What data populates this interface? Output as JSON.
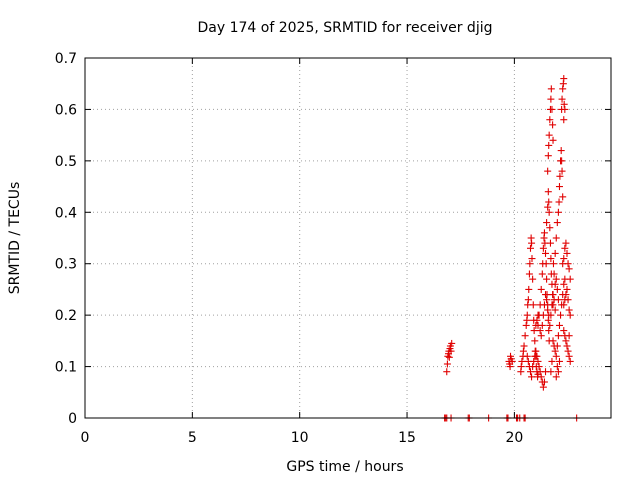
{
  "chart_data": {
    "type": "scatter",
    "title": "Day 174 of 2025, SRMTID for receiver djig",
    "xlabel": "GPS time / hours",
    "ylabel": "SRMTID / TECUs",
    "xlim": [
      0,
      24.5
    ],
    "ylim": [
      0,
      0.7
    ],
    "xticks": [
      0,
      5,
      10,
      15,
      20
    ],
    "xtick_labels": [
      "0",
      "5",
      "10",
      "15",
      "20"
    ],
    "yticks": [
      0,
      0.1,
      0.2,
      0.3,
      0.4,
      0.5,
      0.6,
      0.7
    ],
    "ytick_labels": [
      "0",
      "0.1",
      "0.2",
      "0.3",
      "0.4",
      "0.5",
      "0.6",
      "0.7"
    ],
    "grid": true,
    "marker": "+",
    "color": "#e00000",
    "series": [
      {
        "name": "SRMTID",
        "points": [
          [
            16.75,
            0.0
          ],
          [
            16.8,
            0.0
          ],
          [
            16.85,
            0.0
          ],
          [
            17.05,
            0.0
          ],
          [
            17.85,
            0.0
          ],
          [
            17.9,
            0.0
          ],
          [
            18.8,
            0.0
          ],
          [
            19.65,
            0.0
          ],
          [
            19.7,
            0.0
          ],
          [
            20.1,
            0.0
          ],
          [
            20.15,
            0.0
          ],
          [
            20.25,
            0.0
          ],
          [
            20.45,
            0.0
          ],
          [
            20.5,
            0.0
          ],
          [
            22.9,
            0.0
          ],
          [
            16.85,
            0.09
          ],
          [
            16.88,
            0.105
          ],
          [
            16.9,
            0.12
          ],
          [
            16.93,
            0.125
          ],
          [
            16.95,
            0.13
          ],
          [
            17.0,
            0.135
          ],
          [
            17.02,
            0.14
          ],
          [
            17.05,
            0.13
          ],
          [
            17.08,
            0.145
          ],
          [
            16.97,
            0.118
          ],
          [
            19.75,
            0.11
          ],
          [
            19.78,
            0.105
          ],
          [
            19.82,
            0.12
          ],
          [
            19.85,
            0.115
          ],
          [
            19.9,
            0.11
          ],
          [
            19.8,
            0.1
          ],
          [
            20.3,
            0.09
          ],
          [
            20.32,
            0.1
          ],
          [
            20.35,
            0.11
          ],
          [
            20.4,
            0.12
          ],
          [
            20.42,
            0.13
          ],
          [
            20.45,
            0.14
          ],
          [
            20.5,
            0.16
          ],
          [
            20.55,
            0.18
          ],
          [
            20.58,
            0.19
          ],
          [
            20.6,
            0.2
          ],
          [
            20.62,
            0.22
          ],
          [
            20.65,
            0.23
          ],
          [
            20.67,
            0.25
          ],
          [
            20.7,
            0.28
          ],
          [
            20.72,
            0.3
          ],
          [
            20.75,
            0.33
          ],
          [
            20.78,
            0.35
          ],
          [
            20.8,
            0.34
          ],
          [
            20.82,
            0.31
          ],
          [
            20.85,
            0.27
          ],
          [
            20.88,
            0.22
          ],
          [
            20.9,
            0.19
          ],
          [
            20.92,
            0.17
          ],
          [
            20.95,
            0.15
          ],
          [
            20.97,
            0.13
          ],
          [
            21.0,
            0.12
          ],
          [
            21.02,
            0.1
          ],
          [
            21.05,
            0.09
          ],
          [
            21.08,
            0.08
          ],
          [
            21.1,
            0.085
          ],
          [
            20.6,
            0.12
          ],
          [
            20.65,
            0.11
          ],
          [
            20.7,
            0.1
          ],
          [
            20.75,
            0.09
          ],
          [
            20.8,
            0.08
          ],
          [
            20.85,
            0.1
          ],
          [
            20.9,
            0.11
          ],
          [
            20.95,
            0.12
          ],
          [
            21.0,
            0.13
          ],
          [
            21.05,
            0.12
          ],
          [
            21.1,
            0.11
          ],
          [
            21.15,
            0.1
          ],
          [
            21.2,
            0.09
          ],
          [
            21.25,
            0.08
          ],
          [
            21.3,
            0.07
          ],
          [
            21.35,
            0.06
          ],
          [
            21.4,
            0.07
          ],
          [
            21.45,
            0.09
          ],
          [
            21.1,
            0.18
          ],
          [
            21.15,
            0.2
          ],
          [
            21.2,
            0.22
          ],
          [
            21.25,
            0.25
          ],
          [
            21.3,
            0.28
          ],
          [
            21.32,
            0.3
          ],
          [
            21.35,
            0.33
          ],
          [
            21.38,
            0.35
          ],
          [
            21.4,
            0.36
          ],
          [
            21.42,
            0.34
          ],
          [
            21.45,
            0.32
          ],
          [
            21.48,
            0.3
          ],
          [
            21.5,
            0.27
          ],
          [
            21.52,
            0.24
          ],
          [
            21.55,
            0.21
          ],
          [
            21.58,
            0.19
          ],
          [
            21.6,
            0.17
          ],
          [
            21.62,
            0.15
          ],
          [
            21.0,
            0.18
          ],
          [
            21.05,
            0.19
          ],
          [
            21.1,
            0.2
          ],
          [
            21.2,
            0.17
          ],
          [
            21.25,
            0.16
          ],
          [
            21.3,
            0.18
          ],
          [
            21.35,
            0.2
          ],
          [
            21.4,
            0.22
          ],
          [
            21.45,
            0.24
          ],
          [
            21.5,
            0.23
          ],
          [
            21.55,
            0.22
          ],
          [
            21.6,
            0.2
          ],
          [
            21.65,
            0.18
          ],
          [
            21.7,
            0.2
          ],
          [
            21.75,
            0.22
          ],
          [
            21.8,
            0.24
          ],
          [
            21.85,
            0.23
          ],
          [
            21.9,
            0.21
          ],
          [
            21.5,
            0.38
          ],
          [
            21.55,
            0.41
          ],
          [
            21.58,
            0.44
          ],
          [
            21.6,
            0.42
          ],
          [
            21.62,
            0.4
          ],
          [
            21.65,
            0.37
          ],
          [
            21.68,
            0.34
          ],
          [
            21.7,
            0.31
          ],
          [
            21.72,
            0.28
          ],
          [
            21.75,
            0.26
          ],
          [
            21.78,
            0.24
          ],
          [
            21.8,
            0.22
          ],
          [
            21.55,
            0.48
          ],
          [
            21.58,
            0.51
          ],
          [
            21.6,
            0.53
          ],
          [
            21.62,
            0.55
          ],
          [
            21.65,
            0.58
          ],
          [
            21.68,
            0.6
          ],
          [
            21.7,
            0.62
          ],
          [
            21.72,
            0.64
          ],
          [
            21.75,
            0.6
          ],
          [
            21.78,
            0.57
          ],
          [
            21.8,
            0.54
          ],
          [
            21.8,
            0.15
          ],
          [
            21.85,
            0.14
          ],
          [
            21.9,
            0.13
          ],
          [
            21.95,
            0.12
          ],
          [
            22.0,
            0.14
          ],
          [
            22.05,
            0.16
          ],
          [
            22.1,
            0.18
          ],
          [
            22.15,
            0.2
          ],
          [
            22.2,
            0.22
          ],
          [
            22.25,
            0.24
          ],
          [
            22.3,
            0.26
          ],
          [
            22.35,
            0.27
          ],
          [
            21.9,
            0.32
          ],
          [
            21.95,
            0.35
          ],
          [
            22.0,
            0.38
          ],
          [
            22.05,
            0.4
          ],
          [
            22.08,
            0.42
          ],
          [
            22.1,
            0.45
          ],
          [
            22.12,
            0.47
          ],
          [
            22.15,
            0.5
          ],
          [
            22.18,
            0.52
          ],
          [
            22.2,
            0.5
          ],
          [
            22.22,
            0.48
          ],
          [
            22.25,
            0.43
          ],
          [
            22.2,
            0.6
          ],
          [
            22.22,
            0.62
          ],
          [
            22.25,
            0.64
          ],
          [
            22.28,
            0.65
          ],
          [
            22.3,
            0.66
          ],
          [
            22.32,
            0.61
          ],
          [
            22.35,
            0.6
          ],
          [
            22.3,
            0.58
          ],
          [
            22.25,
            0.3
          ],
          [
            22.3,
            0.31
          ],
          [
            22.35,
            0.33
          ],
          [
            22.4,
            0.34
          ],
          [
            22.45,
            0.32
          ],
          [
            22.5,
            0.3
          ],
          [
            22.3,
            0.22
          ],
          [
            22.35,
            0.23
          ],
          [
            22.4,
            0.24
          ],
          [
            22.45,
            0.25
          ],
          [
            22.5,
            0.23
          ],
          [
            22.55,
            0.21
          ],
          [
            22.3,
            0.17
          ],
          [
            22.35,
            0.16
          ],
          [
            22.4,
            0.15
          ],
          [
            22.45,
            0.14
          ],
          [
            22.5,
            0.13
          ],
          [
            22.55,
            0.12
          ],
          [
            22.6,
            0.11
          ],
          [
            22.55,
            0.16
          ],
          [
            22.6,
            0.2
          ],
          [
            22.6,
            0.27
          ],
          [
            22.55,
            0.29
          ],
          [
            22.0,
            0.25
          ],
          [
            22.05,
            0.23
          ],
          [
            21.95,
            0.27
          ],
          [
            21.9,
            0.26
          ],
          [
            21.85,
            0.28
          ],
          [
            21.82,
            0.3
          ],
          [
            22.0,
            0.1
          ],
          [
            22.05,
            0.09
          ],
          [
            22.1,
            0.11
          ],
          [
            21.95,
            0.08
          ],
          [
            21.7,
            0.09
          ],
          [
            21.75,
            0.11
          ]
        ]
      }
    ]
  }
}
